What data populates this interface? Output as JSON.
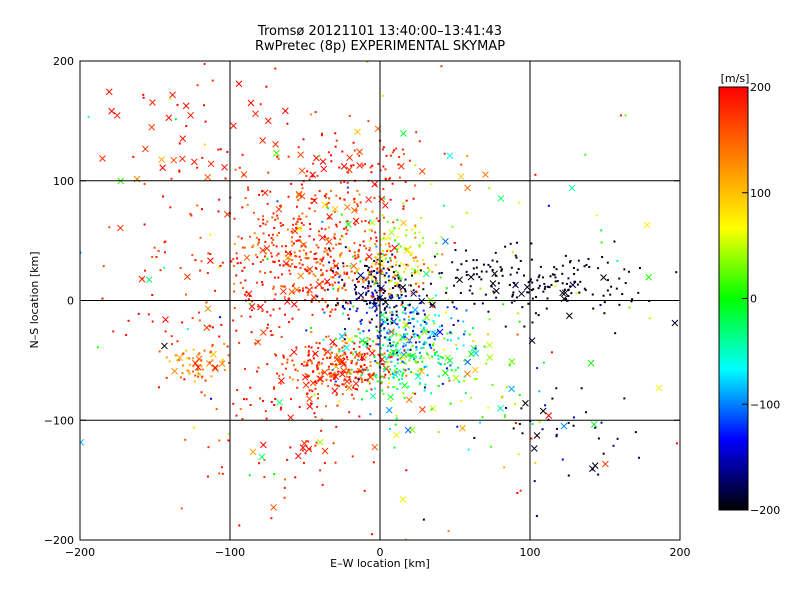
{
  "chart_data": {
    "type": "scatter",
    "title_line1": "Tromsø 20121101 13:40:00–13:41:43",
    "title_line2": "RwPretec (8p) EXPERIMENTAL SKYMAP",
    "xlabel": "E–W location [km]",
    "ylabel": "N–S location [km]",
    "xlim": [
      -200,
      200
    ],
    "ylim": [
      -200,
      200
    ],
    "x_ticks": [
      "−200",
      "−100",
      "0",
      "100",
      "200"
    ],
    "y_ticks": [
      "−200",
      "−100",
      "0",
      "100",
      "200"
    ],
    "grid_lines_at": [
      -100,
      0,
      100
    ],
    "colorbar": {
      "unit_label": "[m/s]",
      "ticks": [
        "200",
        "100",
        "0",
        "−100",
        "−200"
      ],
      "range": [
        -200,
        200
      ],
      "colormap": [
        "#000000",
        "#0000ff",
        "#00ffff",
        "#00ff00",
        "#ffff00",
        "#ff8000",
        "#ff0000"
      ]
    },
    "markers": [
      "dot",
      "x"
    ],
    "clusters": [
      {
        "cx": -40,
        "cy": 40,
        "sx": 28,
        "sy": 28,
        "n": 380,
        "v_mean": 170,
        "v_sd": 25,
        "x_frac": 0.08
      },
      {
        "cx": -25,
        "cy": -55,
        "sx": 18,
        "sy": 12,
        "n": 260,
        "v_mean": 175,
        "v_sd": 30,
        "x_frac": 0.08
      },
      {
        "cx": 15,
        "cy": -45,
        "sx": 20,
        "sy": 18,
        "n": 260,
        "v_mean": -20,
        "v_sd": 50,
        "x_frac": 0.08
      },
      {
        "cx": 20,
        "cy": -20,
        "sx": 18,
        "sy": 15,
        "n": 120,
        "v_mean": -110,
        "v_sd": 40,
        "x_frac": 0.06
      },
      {
        "cx": -5,
        "cy": 5,
        "sx": 15,
        "sy": 15,
        "n": 160,
        "v_mean": -170,
        "v_sd": 30,
        "x_frac": 0.06
      },
      {
        "cx": 10,
        "cy": 35,
        "sx": 18,
        "sy": 18,
        "n": 140,
        "v_mean": 70,
        "v_sd": 45,
        "x_frac": 0.06
      },
      {
        "cx": 100,
        "cy": 15,
        "sx": 40,
        "sy": 15,
        "n": 200,
        "v_mean": -195,
        "v_sd": 10,
        "x_frac": 0.08
      },
      {
        "cx": -85,
        "cy": 20,
        "sx": 45,
        "sy": 50,
        "n": 220,
        "v_mean": 185,
        "v_sd": 20,
        "x_frac": 0.08
      },
      {
        "cx": -120,
        "cy": 145,
        "sx": 30,
        "sy": 30,
        "n": 55,
        "v_mean": 190,
        "v_sd": 15,
        "x_frac": 0.45
      },
      {
        "cx": -15,
        "cy": 110,
        "sx": 30,
        "sy": 20,
        "n": 90,
        "v_mean": 185,
        "v_sd": 20,
        "x_frac": 0.12
      },
      {
        "cx": -120,
        "cy": -52,
        "sx": 10,
        "sy": 8,
        "n": 60,
        "v_mean": 130,
        "v_sd": 25,
        "x_frac": 0.15
      },
      {
        "cx": 120,
        "cy": -110,
        "sx": 30,
        "sy": 25,
        "n": 40,
        "v_mean": -190,
        "v_sd": 20,
        "x_frac": 0.2
      },
      {
        "cx": -60,
        "cy": -110,
        "sx": 30,
        "sy": 30,
        "n": 80,
        "v_mean": 185,
        "v_sd": 20,
        "x_frac": 0.1
      },
      {
        "cx": 60,
        "cy": -80,
        "sx": 30,
        "sy": 25,
        "n": 60,
        "v_mean": 10,
        "v_sd": 70,
        "x_frac": 0.35
      },
      {
        "cx": 0,
        "cy": 0,
        "sx": 110,
        "sy": 100,
        "n": 180,
        "v_mean": 60,
        "v_sd": 120,
        "x_frac": 0.3
      }
    ]
  }
}
